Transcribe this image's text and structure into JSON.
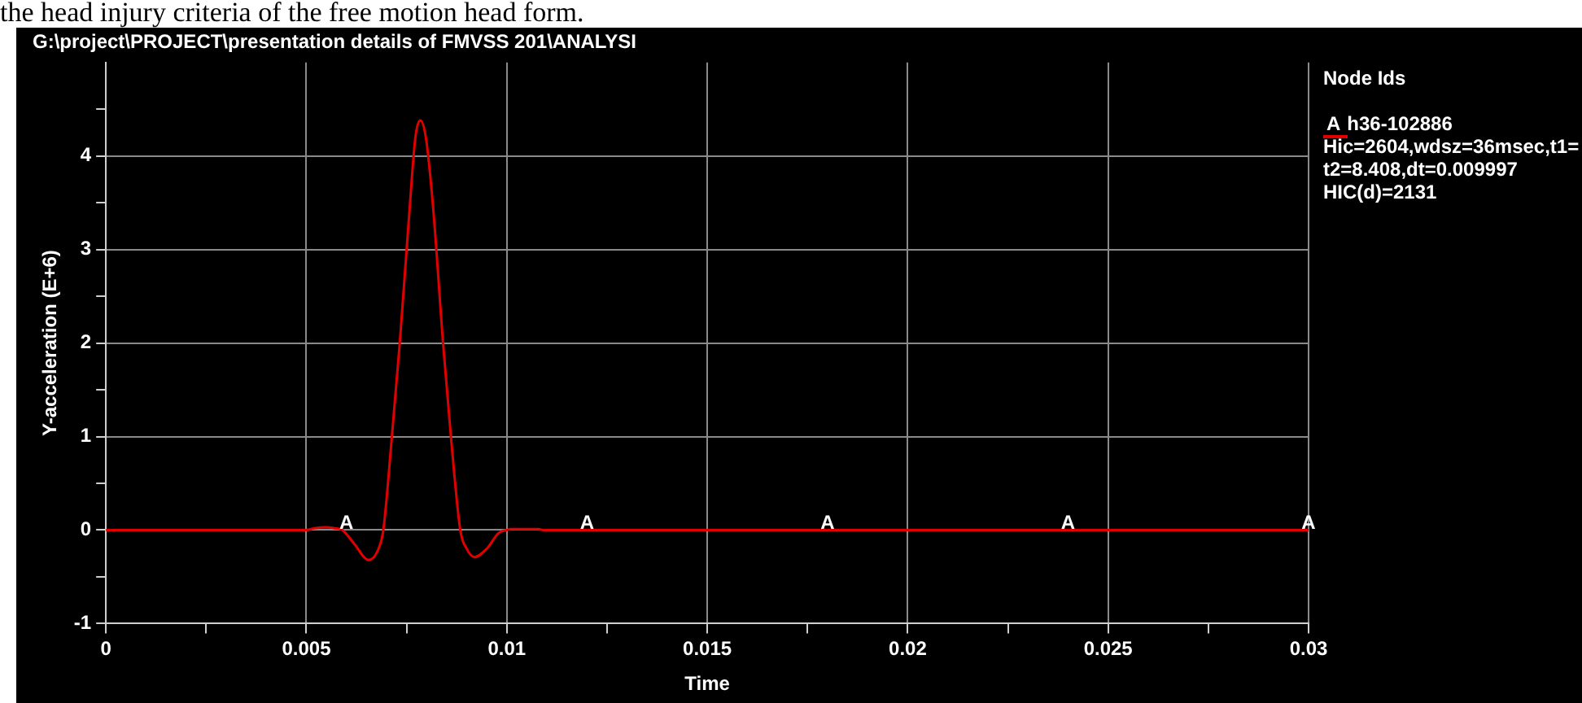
{
  "chart_data": {
    "type": "line",
    "title": "G:\\project\\PROJECT\\presentation details of FMVSS 201\\ANALYSI",
    "xlabel": "Time",
    "ylabel": "Y-acceleration (E+6)",
    "legend_title": "Node Ids",
    "legend": "right",
    "grid": true,
    "marker": "none",
    "line_style": "solid",
    "x": [
      0,
      0.005,
      0.0052,
      0.0055,
      0.0057,
      0.0059,
      0.0062,
      0.00655,
      0.0068,
      0.00692,
      0.00713,
      0.00733,
      0.00758,
      0.00772,
      0.00784,
      0.00798,
      0.00816,
      0.00841,
      0.00861,
      0.00884,
      0.009,
      0.00919,
      0.0095,
      0.0098,
      0.01,
      0.0101,
      0.0108,
      0.0109,
      0.03
    ],
    "series": [
      {
        "name": "A h36-102886",
        "color": "#e00000",
        "values": [
          0,
          0,
          0.02,
          0.03,
          0.02,
          0,
          -0.15,
          -0.32,
          -0.2,
          0,
          0.98,
          2.0,
          3.46,
          4.2,
          4.38,
          4.2,
          3.46,
          2.0,
          0.98,
          0,
          -0.2,
          -0.29,
          -0.2,
          -0.03,
          0,
          0.01,
          0.01,
          0,
          0
        ]
      }
    ],
    "xlim": [
      0,
      0.03
    ],
    "xticks": [
      0,
      {
        "value": 0.0025,
        "label": null
      },
      0.005,
      {
        "value": 0.0075,
        "label": null
      },
      0.01,
      {
        "value": 0.0125,
        "label": null
      },
      0.015,
      {
        "value": 0.0175,
        "label": null
      },
      0.02,
      {
        "value": 0.0225,
        "label": null
      },
      0.025,
      {
        "value": 0.0275,
        "label": null
      },
      0.03
    ],
    "ylim": [
      -1,
      5
    ],
    "yticks": [
      -1,
      {
        "value": -0.5,
        "label": null
      },
      0,
      {
        "value": 0.5,
        "label": null
      },
      1,
      {
        "value": 1.5,
        "label": null
      },
      2,
      {
        "value": 2.5,
        "label": null
      },
      3,
      {
        "value": 3.5,
        "label": null
      },
      4,
      {
        "value": 4.5,
        "label": null
      }
    ],
    "annotations": [
      "the head injury criteria of the free motion head form.",
      "Hic=2604,wdsz=36msec,t1=",
      "t2=8.408,dt=0.009997",
      "HIC(d)=2131",
      {
        "text": "A",
        "x": 0.006,
        "y": 0
      },
      {
        "text": "A",
        "x": 0.012,
        "y": 0
      },
      {
        "text": "A",
        "x": 0.018,
        "y": 0
      },
      {
        "text": "A",
        "x": 0.024,
        "y": 0
      },
      {
        "text": "A",
        "x": 0.03,
        "y": 0
      }
    ]
  }
}
